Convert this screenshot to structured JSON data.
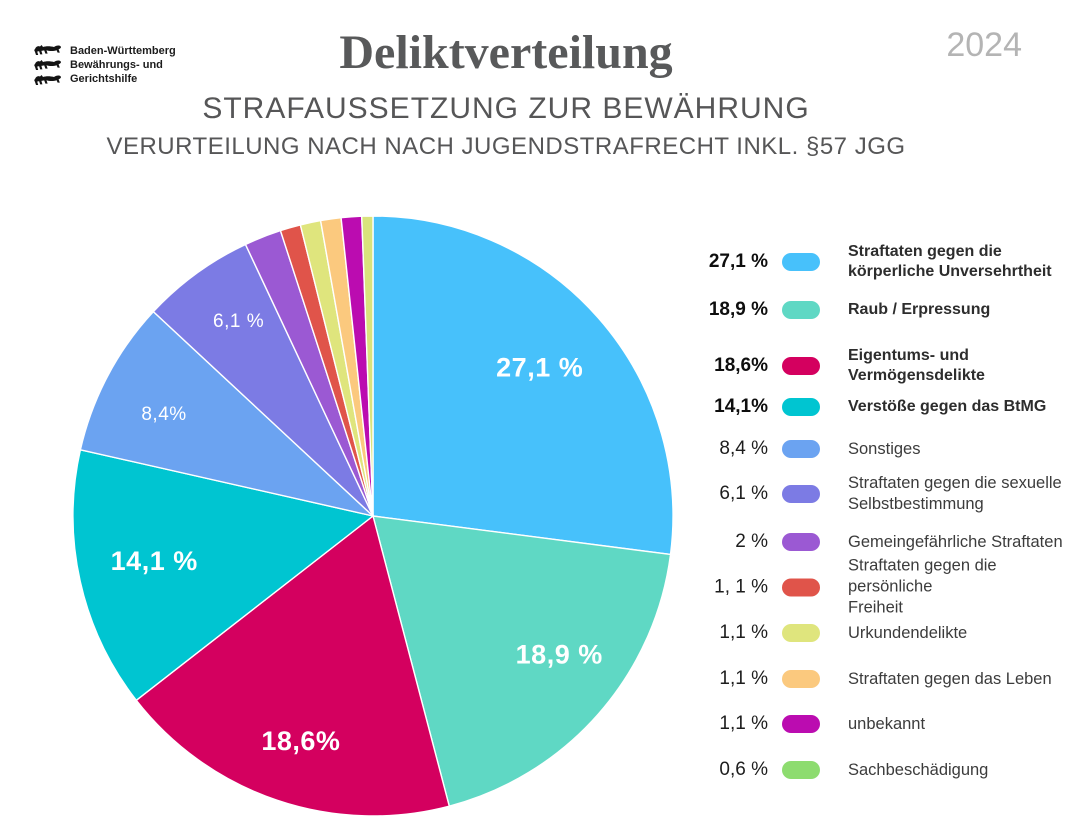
{
  "header": {
    "logo": {
      "lines": [
        "Baden-Württemberg",
        "Bewährungs- und",
        "Gerichtshilfe"
      ]
    },
    "title": "Deliktverteilung",
    "year": "2024",
    "subtitle1": "STRAFAUSSETZUNG ZUR BEWÄHRUNG",
    "subtitle2": "VERURTEILUNG NACH NACH JUGENDSTRAFRECHT INKL. §57 JGG"
  },
  "colors": {
    "title_text": "#58595a",
    "subtitle_text": "#565657",
    "year_text": "#b4b4b4",
    "slice_divider": "#ffffff"
  },
  "chart_data": {
    "type": "pie",
    "title": "Deliktverteilung",
    "unit": "%",
    "start_angle_deg": -90,
    "direction": "clockwise",
    "legend_position": "right",
    "labels_on_slices": true,
    "slices": [
      {
        "label_lines": [
          "Straftaten gegen die",
          "körperliche Unversehrtheit"
        ],
        "value": 27.1,
        "percent_text": "27,1 %",
        "pie_label": "27,1 %",
        "color": "#47C1FB",
        "emphasis": true
      },
      {
        "label_lines": [
          "Raub / Erpressung"
        ],
        "value": 18.9,
        "percent_text": "18,9 %",
        "pie_label": "18,9 %",
        "color": "#5FD8C4",
        "emphasis": true
      },
      {
        "label_lines": [
          "Eigentums- und",
          "Vermögensdelikte"
        ],
        "value": 18.6,
        "percent_text": "18,6%",
        "pie_label": "18,6%",
        "color": "#D4005F",
        "emphasis": true
      },
      {
        "label_lines": [
          "Verstöße gegen das BtMG"
        ],
        "value": 14.1,
        "percent_text": "14,1%",
        "pie_label": "14,1 %",
        "color": "#00C5D1",
        "emphasis": true
      },
      {
        "label_lines": [
          "Sonstiges"
        ],
        "value": 8.4,
        "percent_text": "8,4 %",
        "pie_label": "8,4%",
        "color": "#6BA3F1",
        "emphasis": false
      },
      {
        "label_lines": [
          "Straftaten gegen die sexuelle",
          "Selbstbestimmung"
        ],
        "value": 6.1,
        "percent_text": "6,1 %",
        "pie_label": "6,1 %",
        "color": "#7C7BE4",
        "emphasis": false
      },
      {
        "label_lines": [
          "Gemeingefährliche Straftaten"
        ],
        "value": 2,
        "percent_text": "2 %",
        "color": "#9B59D3",
        "emphasis": false
      },
      {
        "label_lines": [
          "Straftaten gegen die persönliche",
          "Freiheit"
        ],
        "value": 1.1,
        "percent_text": "1, 1 %",
        "color": "#E0544A",
        "emphasis": false
      },
      {
        "label_lines": [
          "Urkundendelikte"
        ],
        "value": 1.1,
        "percent_text": "1,1 %",
        "color": "#DFE57D",
        "emphasis": false
      },
      {
        "label_lines": [
          "Straftaten gegen das Leben"
        ],
        "value": 1.1,
        "percent_text": "1,1 %",
        "color": "#FBC97E",
        "emphasis": false
      },
      {
        "label_lines": [
          "unbekannt"
        ],
        "value": 1.1,
        "percent_text": "1,1 %",
        "color": "#BB0CB0",
        "emphasis": false
      },
      {
        "label_lines": [
          "Sachbeschädigung"
        ],
        "value": 0.6,
        "percent_text": "0,6 %",
        "color": "#8DDC6F",
        "pie_color": "#D9E37C",
        "emphasis": false
      }
    ]
  }
}
